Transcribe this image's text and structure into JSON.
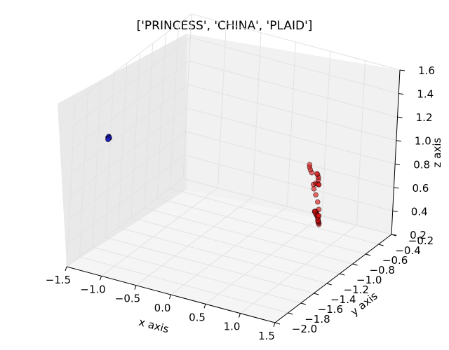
{
  "chart_data": {
    "type": "scatter3d",
    "title": "['PRINCESS', 'CHINA', 'PLAID']",
    "xlabel": "x axis",
    "ylabel": "y axis",
    "zlabel": "z axis",
    "xlim": [
      -1.5,
      1.5
    ],
    "ylim": [
      -2.0,
      -0.2
    ],
    "zlim": [
      0.2,
      1.6
    ],
    "x_ticks": [
      "−1.5",
      "−1.0",
      "−0.5",
      "0.0",
      "0.5",
      "1.0",
      "1.5"
    ],
    "y_ticks": [
      "−2.0",
      "−1.8",
      "−1.6",
      "−1.4",
      "−1.2",
      "−1.0",
      "−0.8",
      "−0.6",
      "−0.4",
      "−0.2"
    ],
    "z_ticks": [
      "0.2",
      "0.4",
      "0.6",
      "0.8",
      "1.0",
      "1.2",
      "1.4",
      "1.6"
    ],
    "grid": true,
    "series": [
      {
        "color": "#1f1fcc",
        "points": [
          [
            -1.05,
            -1.95,
            1.35
          ],
          [
            -1.04,
            -1.95,
            1.36
          ],
          [
            -1.03,
            -1.95,
            1.35
          ],
          [
            -1.04,
            -1.96,
            1.34
          ]
        ]
      },
      {
        "color": "#dd1111",
        "points": [
          [
            0.62,
            -0.38,
            0.22
          ],
          [
            0.64,
            -0.4,
            0.24
          ],
          [
            0.66,
            -0.43,
            0.26
          ],
          [
            0.68,
            -0.46,
            0.28
          ],
          [
            0.7,
            -0.48,
            0.3
          ],
          [
            0.72,
            -0.5,
            0.31
          ],
          [
            0.74,
            -0.53,
            0.33
          ],
          [
            0.76,
            -0.55,
            0.35
          ],
          [
            0.77,
            -0.57,
            0.36
          ],
          [
            0.78,
            -0.58,
            0.38
          ],
          [
            0.79,
            -0.6,
            0.4
          ],
          [
            0.8,
            -0.62,
            0.43
          ],
          [
            0.81,
            -0.64,
            0.46
          ],
          [
            0.82,
            -0.66,
            0.48
          ],
          [
            0.83,
            -0.68,
            0.49
          ],
          [
            0.84,
            -0.7,
            0.5
          ],
          [
            0.85,
            -0.72,
            0.51
          ],
          [
            0.87,
            -0.74,
            0.52
          ],
          [
            0.9,
            -0.76,
            0.52
          ],
          [
            0.93,
            -0.78,
            0.52
          ],
          [
            0.95,
            -0.79,
            0.52
          ],
          [
            0.97,
            -0.8,
            0.53
          ],
          [
            0.99,
            -0.81,
            0.53
          ],
          [
            1.0,
            -0.82,
            0.54
          ],
          [
            0.98,
            -0.8,
            0.58
          ],
          [
            0.94,
            -0.78,
            0.63
          ],
          [
            0.9,
            -0.77,
            0.68
          ],
          [
            0.86,
            -0.76,
            0.72
          ],
          [
            0.84,
            -0.75,
            0.75
          ],
          [
            0.88,
            -0.76,
            0.77
          ],
          [
            0.92,
            -0.78,
            0.78
          ],
          [
            0.96,
            -0.8,
            0.79
          ],
          [
            0.98,
            -0.82,
            0.8
          ],
          [
            0.97,
            -0.82,
            0.84
          ],
          [
            0.95,
            -0.8,
            0.85
          ],
          [
            0.92,
            -0.78,
            0.86
          ],
          [
            0.9,
            -0.77,
            0.86
          ],
          [
            0.8,
            -0.74,
            0.84
          ],
          [
            0.76,
            -0.72,
            0.85
          ],
          [
            0.73,
            -0.7,
            0.86
          ],
          [
            0.71,
            -0.68,
            0.87
          ]
        ]
      }
    ]
  }
}
